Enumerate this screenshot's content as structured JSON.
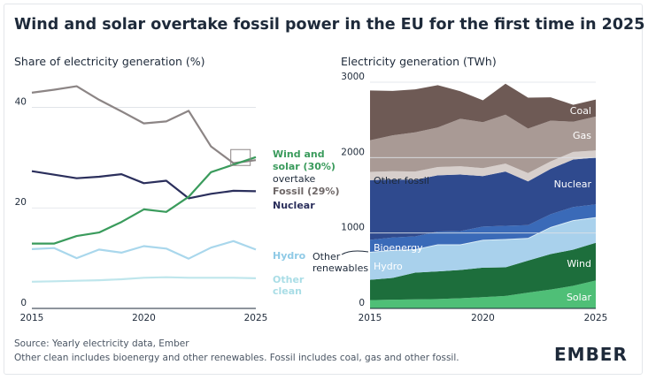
{
  "title": "Wind and solar overtake fossil power in the EU for the first time in 2025",
  "source": "Source: Yearly electricity data, Ember",
  "note": "Other clean includes bioenergy and other renewables. Fossil includes coal, gas and other fossil.",
  "logo": "EMBER",
  "chart_data": [
    {
      "type": "line",
      "title": "Share of electricity generation (%)",
      "x": [
        2015,
        2016,
        2017,
        2018,
        2019,
        2020,
        2021,
        2022,
        2023,
        2024,
        2025
      ],
      "xticks": [
        "2015",
        "2020",
        "2025"
      ],
      "yticks": [
        "0",
        "20",
        "40"
      ],
      "ylim": [
        0,
        45
      ],
      "grid": "horizontal",
      "series": [
        {
          "name": "Fossil (29%)",
          "color": "#8c8585",
          "values": [
            42.9,
            43.5,
            44.2,
            41.5,
            39.2,
            36.8,
            37.2,
            39.3,
            32.2,
            28.9,
            29.5
          ]
        },
        {
          "name": "Nuclear",
          "color": "#2b2f5c",
          "values": [
            27.3,
            26.6,
            25.9,
            26.2,
            26.7,
            24.9,
            25.4,
            21.9,
            22.8,
            23.4,
            23.3
          ]
        },
        {
          "name": "Wind and solar (30%)",
          "color": "#3a9b5c",
          "values": [
            12.9,
            12.9,
            14.4,
            15.1,
            17.2,
            19.7,
            19.2,
            22.2,
            27.1,
            28.6,
            30.1
          ]
        },
        {
          "name": "Hydro",
          "color": "#a9d7ec",
          "values": [
            11.8,
            12.0,
            10.0,
            11.7,
            11.1,
            12.4,
            11.9,
            9.9,
            12.1,
            13.4,
            11.7
          ]
        },
        {
          "name": "Other clean",
          "color": "#bfe6ec",
          "values": [
            5.3,
            5.4,
            5.5,
            5.6,
            5.8,
            6.1,
            6.2,
            6.1,
            6.1,
            6.1,
            6.0
          ]
        }
      ],
      "annotation": [
        "Wind and",
        "solar (30%)",
        "overtake",
        "Fossil (29%)"
      ],
      "labels": {
        "nuclear": "Nuclear",
        "hydro": "Hydro",
        "other_clean": [
          "Other",
          "clean"
        ]
      }
    },
    {
      "type": "area",
      "title": "Electricity generation (TWh)",
      "x": [
        2015,
        2016,
        2017,
        2018,
        2019,
        2020,
        2021,
        2022,
        2023,
        2024,
        2025
      ],
      "xticks": [
        "2015",
        "2020",
        "2025"
      ],
      "yticks": [
        "0",
        "1000",
        "2000",
        "3000"
      ],
      "ylim": [
        0,
        3000
      ],
      "stacked": true,
      "series": [
        {
          "name": "Solar",
          "color": "#4fbf77",
          "values": [
            110,
            115,
            120,
            125,
            135,
            150,
            165,
            210,
            250,
            300,
            370
          ]
        },
        {
          "name": "Wind",
          "color": "#1d6e3c",
          "values": [
            270,
            290,
            355,
            365,
            375,
            390,
            380,
            425,
            470,
            480,
            500
          ]
        },
        {
          "name": "Hydro",
          "color": "#a9d1ec",
          "values": [
            360,
            360,
            300,
            350,
            330,
            360,
            365,
            290,
            350,
            380,
            330
          ]
        },
        {
          "name": "Other renewables",
          "color": "#d9edf6",
          "values": [
            10,
            10,
            10,
            10,
            10,
            10,
            10,
            10,
            10,
            10,
            10
          ]
        },
        {
          "name": "Bioenergy",
          "color": "#3a6ab8",
          "values": [
            160,
            165,
            170,
            170,
            175,
            175,
            175,
            170,
            170,
            175,
            170
          ]
        },
        {
          "name": "Nuclear",
          "color": "#2f4a8e",
          "values": [
            790,
            770,
            750,
            745,
            750,
            670,
            720,
            580,
            600,
            630,
            620
          ]
        },
        {
          "name": "Other fossil",
          "color": "#d7cfcc",
          "values": [
            110,
            110,
            110,
            110,
            110,
            105,
            105,
            110,
            100,
            100,
            95
          ]
        },
        {
          "name": "Gas",
          "color": "#a99a95",
          "values": [
            420,
            475,
            520,
            525,
            630,
            610,
            650,
            590,
            540,
            400,
            450
          ]
        },
        {
          "name": "Coal",
          "color": "#6e5a55",
          "values": [
            660,
            590,
            570,
            560,
            365,
            290,
            410,
            410,
            310,
            225,
            225
          ]
        }
      ],
      "labels": {
        "coal": "Coal",
        "gas": "Gas",
        "other_fossil": "Other fossil",
        "nuclear": "Nuclear",
        "bioenergy": "Bioenergy",
        "other_renewables": [
          "Other",
          "renewables"
        ],
        "hydro": "Hydro",
        "wind": "Wind",
        "solar": "Solar"
      }
    }
  ]
}
